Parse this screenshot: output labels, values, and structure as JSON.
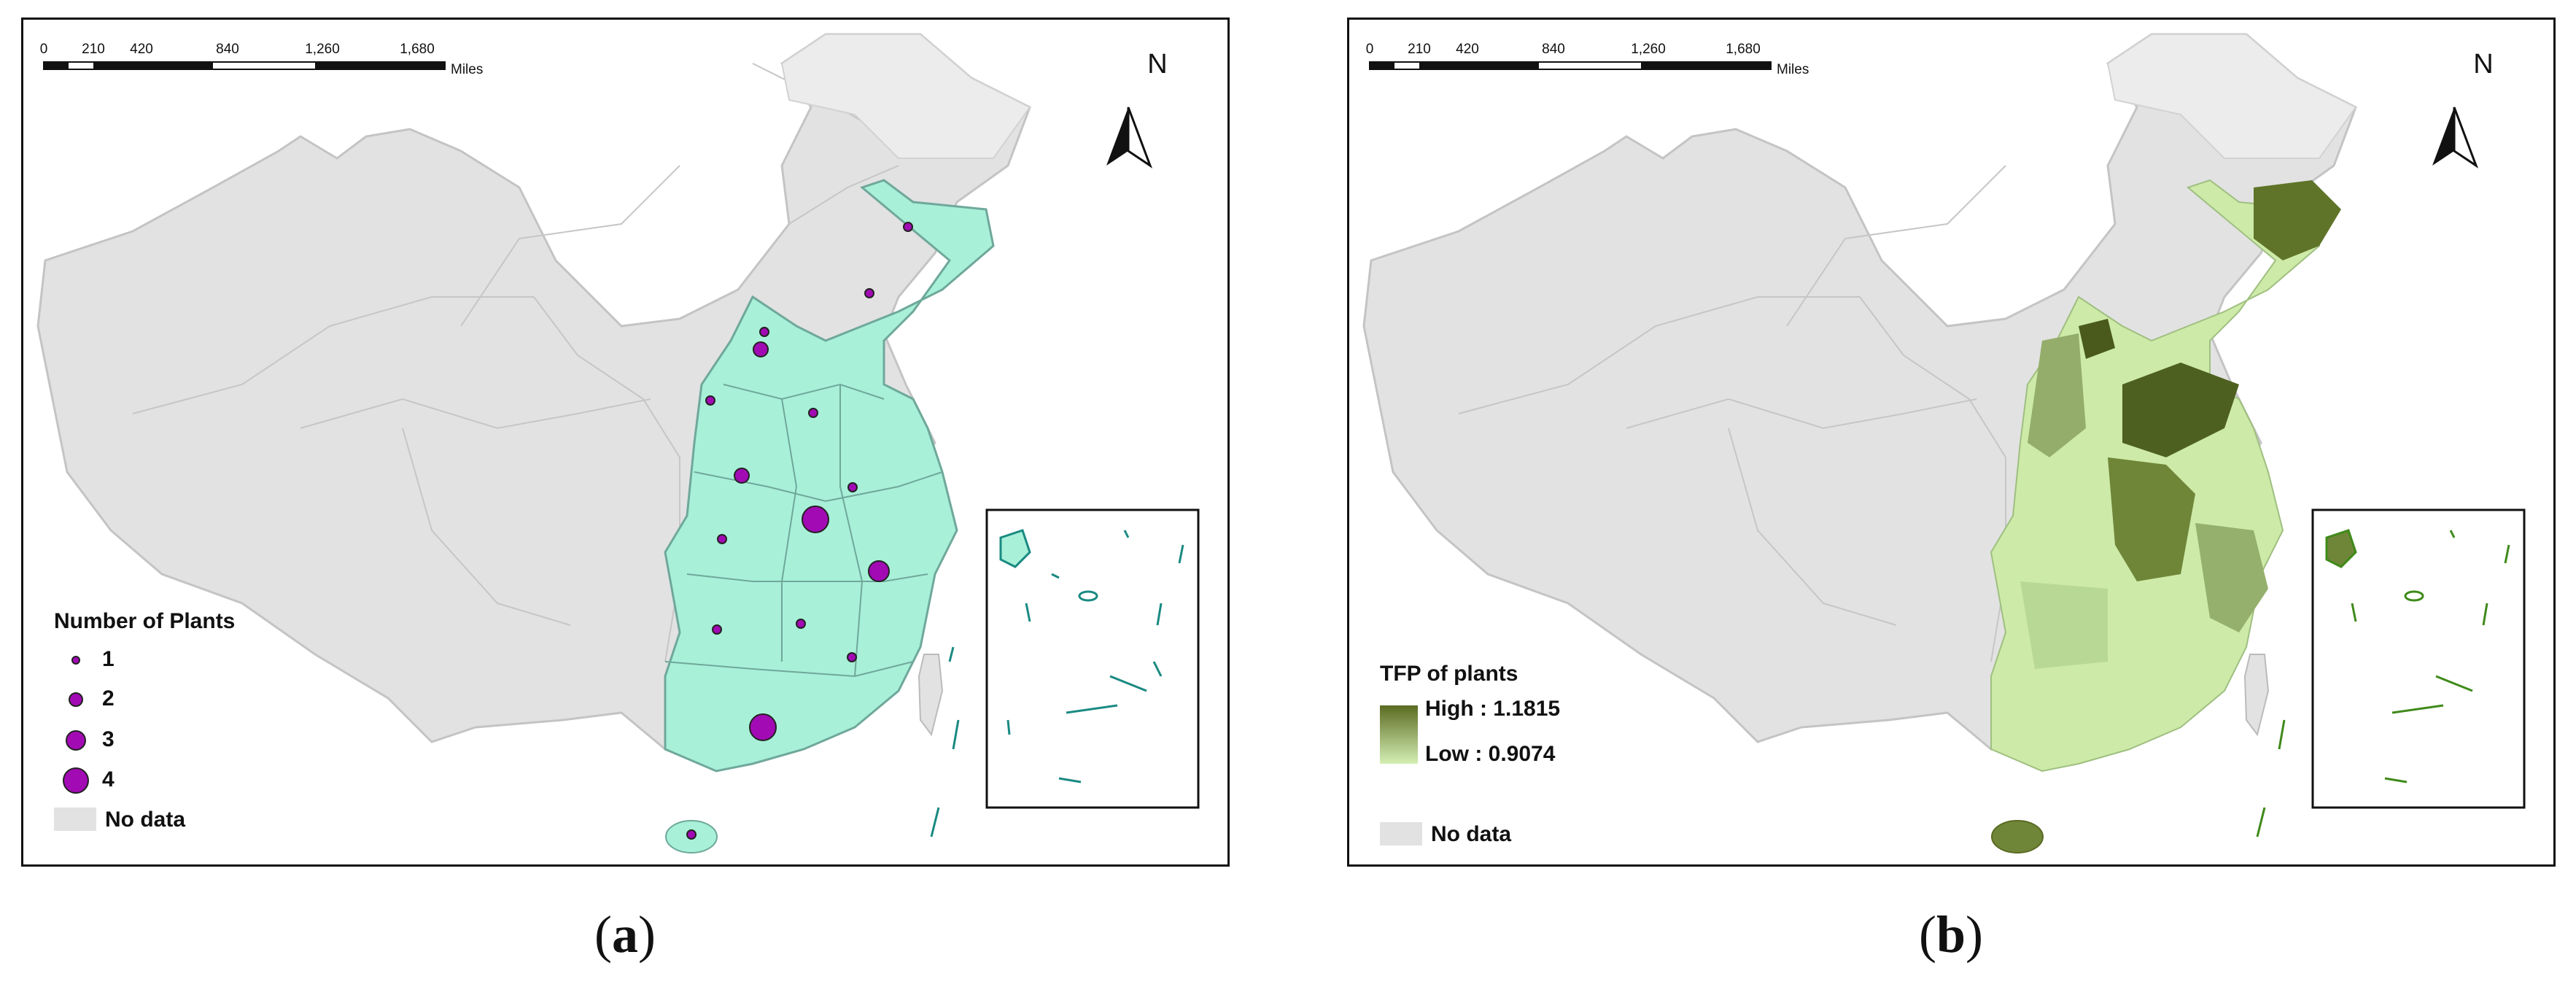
{
  "panels": [
    {
      "id": "a",
      "caption_letter": "a",
      "scale": {
        "ticks": [
          "0",
          "210",
          "420",
          "840",
          "1,260",
          "1,680"
        ],
        "units": "Miles"
      },
      "north": "N",
      "legend": {
        "title": "Number of Plants",
        "items": [
          {
            "label": "1",
            "value": 1
          },
          {
            "label": "2",
            "value": 2
          },
          {
            "label": "3",
            "value": 3
          },
          {
            "label": "4",
            "value": 4
          }
        ],
        "no_data": "No data"
      },
      "colors": {
        "data_fill": "#a8f0d8",
        "no_data_fill": "#e2e2e2",
        "symbol": "#a20ab4",
        "island_stroke": "#1a8a82"
      }
    },
    {
      "id": "b",
      "caption_letter": "b",
      "scale": {
        "ticks": [
          "0",
          "210",
          "420",
          "840",
          "1,260",
          "1,680"
        ],
        "units": "Miles"
      },
      "north": "N",
      "legend": {
        "title": "TFP of plants",
        "high": "High : 1.1815",
        "low": "Low : 0.9074",
        "no_data": "No data"
      },
      "colors": {
        "high": "#5b6b22",
        "low": "#d4efb4",
        "no_data_fill": "#e2e2e2",
        "island_stroke": "#3f8a1a"
      }
    }
  ]
}
